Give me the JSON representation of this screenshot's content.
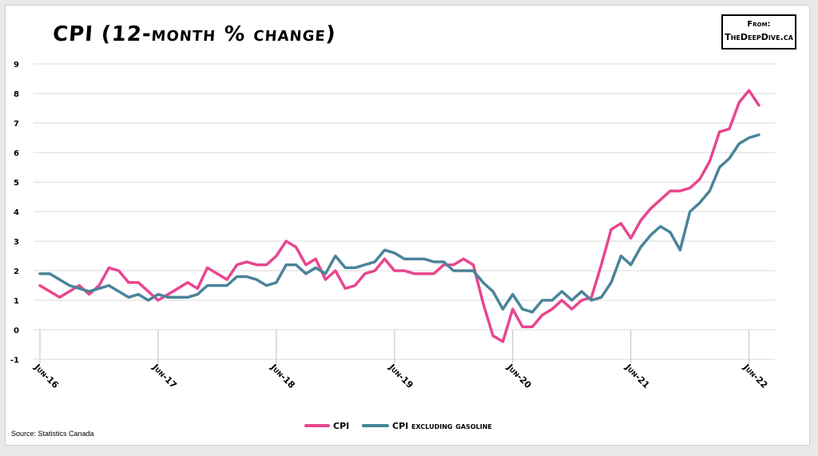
{
  "header": {
    "title": "CPI (12-month % change)",
    "badge_line1": "From:",
    "badge_line2": "TheDeepDive.ca"
  },
  "footer": {
    "source": "Source: Statistics Canada"
  },
  "chart_data": {
    "type": "line",
    "title": "CPI (12-month % change)",
    "xlabel": "",
    "ylabel": "",
    "ylim": [
      -1,
      9
    ],
    "yticks": [
      "-1",
      "0",
      "1",
      "2",
      "3",
      "4",
      "5",
      "6",
      "7",
      "8",
      "9"
    ],
    "x": [
      "Jun-16",
      "Jul-16",
      "Aug-16",
      "Sep-16",
      "Oct-16",
      "Nov-16",
      "Dec-16",
      "Jan-17",
      "Feb-17",
      "Mar-17",
      "Apr-17",
      "May-17",
      "Jun-17",
      "Jul-17",
      "Aug-17",
      "Sep-17",
      "Oct-17",
      "Nov-17",
      "Dec-17",
      "Jan-18",
      "Feb-18",
      "Mar-18",
      "Apr-18",
      "May-18",
      "Jun-18",
      "Jul-18",
      "Aug-18",
      "Sep-18",
      "Oct-18",
      "Nov-18",
      "Dec-18",
      "Jan-19",
      "Feb-19",
      "Mar-19",
      "Apr-19",
      "May-19",
      "Jun-19",
      "Jul-19",
      "Aug-19",
      "Sep-19",
      "Oct-19",
      "Nov-19",
      "Dec-19",
      "Jan-20",
      "Feb-20",
      "Mar-20",
      "Apr-20",
      "May-20",
      "Jun-20",
      "Jul-20",
      "Aug-20",
      "Sep-20",
      "Oct-20",
      "Nov-20",
      "Dec-20",
      "Jan-21",
      "Feb-21",
      "Mar-21",
      "Apr-21",
      "May-21",
      "Jun-21",
      "Jul-21",
      "Aug-21",
      "Sep-21",
      "Oct-21",
      "Nov-21",
      "Dec-21",
      "Jan-22",
      "Feb-22",
      "Mar-22",
      "Apr-22",
      "May-22",
      "Jun-22",
      "Jul-22"
    ],
    "xtick_labels": [
      "Jun-16",
      "Jun-17",
      "Jun-18",
      "Jun-19",
      "Jun-20",
      "Jun-21",
      "Jun-22"
    ],
    "grid": "horizontal",
    "legend": "bottom-center",
    "series": [
      {
        "name": "CPI",
        "color": "#e8468f",
        "values": [
          1.5,
          1.3,
          1.1,
          1.3,
          1.5,
          1.2,
          1.5,
          2.1,
          2.0,
          1.6,
          1.6,
          1.3,
          1.0,
          1.2,
          1.4,
          1.6,
          1.4,
          2.1,
          1.9,
          1.7,
          2.2,
          2.3,
          2.2,
          2.2,
          2.5,
          3.0,
          2.8,
          2.2,
          2.4,
          1.7,
          2.0,
          1.4,
          1.5,
          1.9,
          2.0,
          2.4,
          2.0,
          2.0,
          1.9,
          1.9,
          1.9,
          2.2,
          2.2,
          2.4,
          2.2,
          0.9,
          -0.2,
          -0.4,
          0.7,
          0.1,
          0.1,
          0.5,
          0.7,
          1.0,
          0.7,
          1.0,
          1.1,
          2.2,
          3.4,
          3.6,
          3.1,
          3.7,
          4.1,
          4.4,
          4.7,
          4.7,
          4.8,
          5.1,
          5.7,
          6.7,
          6.8,
          7.7,
          8.1,
          7.6
        ]
      },
      {
        "name": "CPI excluding gasoline",
        "color": "#4a8499",
        "values": [
          1.9,
          1.9,
          1.7,
          1.5,
          1.4,
          1.3,
          1.4,
          1.5,
          1.3,
          1.1,
          1.2,
          1.0,
          1.2,
          1.1,
          1.1,
          1.1,
          1.2,
          1.5,
          1.5,
          1.5,
          1.8,
          1.8,
          1.7,
          1.5,
          1.6,
          2.2,
          2.2,
          1.9,
          2.1,
          1.9,
          2.5,
          2.1,
          2.1,
          2.2,
          2.3,
          2.7,
          2.6,
          2.4,
          2.4,
          2.4,
          2.3,
          2.3,
          2.0,
          2.0,
          2.0,
          1.6,
          1.3,
          0.7,
          1.2,
          0.7,
          0.6,
          1.0,
          1.0,
          1.3,
          1.0,
          1.3,
          1.0,
          1.1,
          1.6,
          2.5,
          2.2,
          2.8,
          3.2,
          3.5,
          3.3,
          2.7,
          4.0,
          4.3,
          4.7,
          5.5,
          5.8,
          6.3,
          6.5,
          6.6
        ]
      }
    ]
  }
}
